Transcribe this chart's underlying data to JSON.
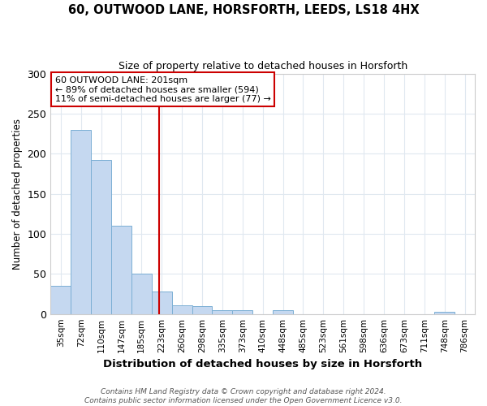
{
  "title1": "60, OUTWOOD LANE, HORSFORTH, LEEDS, LS18 4HX",
  "title2": "Size of property relative to detached houses in Horsforth",
  "xlabel": "Distribution of detached houses by size in Horsforth",
  "ylabel": "Number of detached properties",
  "categories": [
    "35sqm",
    "72sqm",
    "110sqm",
    "147sqm",
    "185sqm",
    "223sqm",
    "260sqm",
    "298sqm",
    "335sqm",
    "373sqm",
    "410sqm",
    "448sqm",
    "485sqm",
    "523sqm",
    "561sqm",
    "598sqm",
    "636sqm",
    "673sqm",
    "711sqm",
    "748sqm",
    "786sqm"
  ],
  "values": [
    35,
    230,
    192,
    110,
    50,
    28,
    11,
    10,
    5,
    5,
    0,
    5,
    0,
    0,
    0,
    0,
    0,
    0,
    0,
    3,
    0
  ],
  "bar_color": "#c5d8f0",
  "bar_edge_color": "#7bafd4",
  "red_line_index": 4.87,
  "annotation_line1": "60 OUTWOOD LANE: 201sqm",
  "annotation_line2": "← 89% of detached houses are smaller (594)",
  "annotation_line3": "11% of semi-detached houses are larger (77) →",
  "annotation_box_color": "#ffffff",
  "annotation_box_edge": "#cc0000",
  "red_line_color": "#cc0000",
  "footer_text": "Contains HM Land Registry data © Crown copyright and database right 2024.\nContains public sector information licensed under the Open Government Licence v3.0.",
  "ylim": [
    0,
    300
  ],
  "yticks": [
    0,
    50,
    100,
    150,
    200,
    250,
    300
  ],
  "fig_background": "#ffffff",
  "plot_background": "#ffffff",
  "grid_color": "#e0e8f0"
}
